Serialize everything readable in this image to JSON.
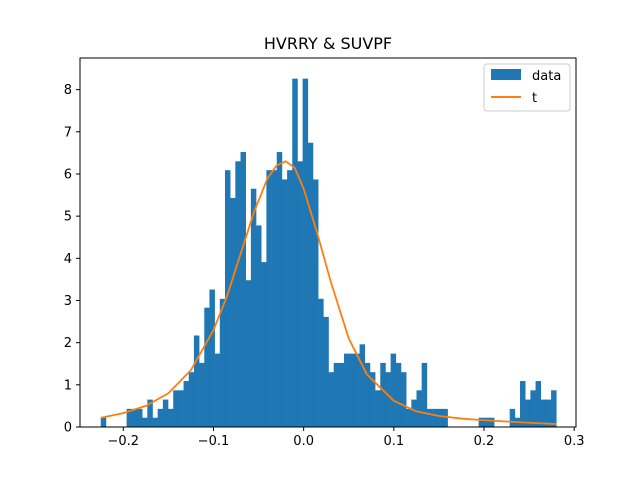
{
  "chart_data": {
    "type": "bar",
    "title": "HVRRY & SUVPF",
    "xlabel": "",
    "ylabel": "",
    "xlim": [
      -0.248,
      0.302
    ],
    "ylim": [
      0,
      8.75
    ],
    "x_ticks": [
      -0.2,
      -0.1,
      0.0,
      0.1,
      0.2,
      0.3
    ],
    "x_tick_labels": [
      "−0.2",
      "−0.1",
      "0.0",
      "0.1",
      "0.2",
      "0.3"
    ],
    "y_ticks": [
      0,
      1,
      2,
      3,
      4,
      5,
      6,
      7,
      8
    ],
    "y_tick_labels": [
      "0",
      "1",
      "2",
      "3",
      "4",
      "5",
      "6",
      "7",
      "8"
    ],
    "grid": false,
    "legend": {
      "placement": "top-right",
      "entries": [
        "data",
        "t"
      ]
    },
    "colors": {
      "bars": "#1f77b4",
      "line": "#ff7f0e"
    },
    "series": [
      {
        "name": "data",
        "type": "histogram",
        "bin_start": -0.225,
        "bin_width": 0.00574,
        "values": [
          0.22,
          0,
          0,
          0,
          0,
          0.43,
          0.43,
          0.43,
          0.22,
          0.65,
          0.22,
          0.43,
          0.65,
          0.43,
          0.87,
          0.87,
          1.09,
          1.3,
          2.17,
          1.52,
          2.83,
          3.26,
          1.74,
          3.04,
          6.09,
          5.43,
          6.3,
          6.52,
          3.48,
          5.65,
          4.78,
          3.91,
          6.09,
          6.09,
          6.52,
          5.87,
          6.09,
          8.26,
          6.3,
          8.26,
          6.74,
          5.87,
          3.04,
          2.61,
          1.3,
          1.52,
          1.52,
          1.74,
          1.74,
          1.74,
          1.96,
          1.52,
          1.3,
          0.87,
          1.52,
          1.3,
          1.74,
          1.52,
          1.3,
          0.43,
          0.65,
          0.87,
          1.52,
          0.43,
          0.43,
          0.43,
          0.43,
          0,
          0,
          0,
          0,
          0,
          0,
          0.22,
          0.22,
          0.22,
          0,
          0,
          0,
          0.43,
          0.22,
          1.09,
          0.65,
          0.87,
          1.09,
          0.65,
          0.65,
          0.87
        ]
      },
      {
        "name": "t",
        "type": "line",
        "x": [
          -0.225,
          -0.2,
          -0.175,
          -0.15,
          -0.125,
          -0.1,
          -0.085,
          -0.07,
          -0.055,
          -0.04,
          -0.03,
          -0.02,
          -0.01,
          0.0,
          0.015,
          0.03,
          0.05,
          0.07,
          0.1,
          0.125,
          0.15,
          0.175,
          0.2,
          0.225,
          0.25,
          0.28
        ],
        "y": [
          0.22,
          0.33,
          0.5,
          0.8,
          1.35,
          2.3,
          3.1,
          4.1,
          5.1,
          5.9,
          6.2,
          6.3,
          6.15,
          5.65,
          4.6,
          3.45,
          2.1,
          1.25,
          0.62,
          0.37,
          0.26,
          0.2,
          0.16,
          0.13,
          0.1,
          0.07
        ]
      }
    ]
  }
}
